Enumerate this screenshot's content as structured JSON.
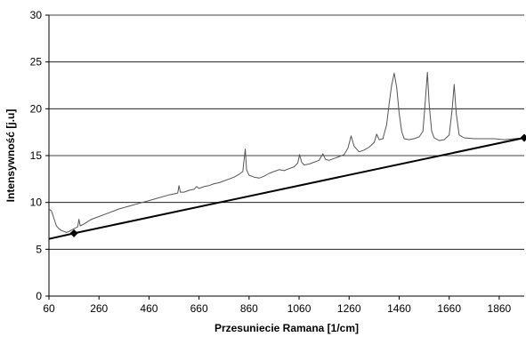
{
  "chart_data": {
    "type": "line",
    "xlabel": "Przesuniecie Ramana [1/cm]",
    "ylabel": "Intensywność [j.u]",
    "xlim": [
      60,
      1960
    ],
    "ylim": [
      0,
      30
    ],
    "x_ticks": [
      60,
      260,
      460,
      660,
      860,
      1060,
      1260,
      1460,
      1660,
      1860
    ],
    "y_ticks": [
      0,
      5,
      10,
      15,
      20,
      25,
      30
    ],
    "grid": "horizontal",
    "legend": "none",
    "colors": {
      "spectrum": "#555555",
      "baseline": "#000000",
      "grid": "#000000"
    },
    "series": [
      {
        "values": [
          [
            60,
            9.3
          ],
          [
            70,
            9.1
          ],
          [
            80,
            8.3
          ],
          [
            90,
            7.5
          ],
          [
            100,
            7.2
          ],
          [
            110,
            7.0
          ],
          [
            120,
            6.9
          ],
          [
            130,
            6.8
          ],
          [
            140,
            6.9
          ],
          [
            160,
            7.2
          ],
          [
            175,
            7.4
          ],
          [
            180,
            8.2
          ],
          [
            185,
            7.5
          ],
          [
            200,
            7.7
          ],
          [
            230,
            8.2
          ],
          [
            260,
            8.5
          ],
          [
            300,
            8.9
          ],
          [
            340,
            9.3
          ],
          [
            380,
            9.6
          ],
          [
            420,
            9.9
          ],
          [
            460,
            10.2
          ],
          [
            500,
            10.5
          ],
          [
            540,
            10.8
          ],
          [
            575,
            11.0
          ],
          [
            580,
            11.8
          ],
          [
            585,
            11.1
          ],
          [
            600,
            11.1
          ],
          [
            620,
            11.3
          ],
          [
            640,
            11.4
          ],
          [
            650,
            11.7
          ],
          [
            660,
            11.5
          ],
          [
            680,
            11.7
          ],
          [
            700,
            11.8
          ],
          [
            720,
            12.0
          ],
          [
            740,
            12.1
          ],
          [
            760,
            12.3
          ],
          [
            780,
            12.5
          ],
          [
            800,
            12.7
          ],
          [
            820,
            13.0
          ],
          [
            835,
            13.3
          ],
          [
            845,
            15.7
          ],
          [
            850,
            13.5
          ],
          [
            860,
            12.9
          ],
          [
            880,
            12.7
          ],
          [
            900,
            12.6
          ],
          [
            920,
            12.8
          ],
          [
            940,
            13.1
          ],
          [
            960,
            13.3
          ],
          [
            980,
            13.5
          ],
          [
            1000,
            13.4
          ],
          [
            1020,
            13.6
          ],
          [
            1040,
            13.8
          ],
          [
            1055,
            14.2
          ],
          [
            1062,
            15.1
          ],
          [
            1070,
            14.3
          ],
          [
            1080,
            14.0
          ],
          [
            1100,
            14.1
          ],
          [
            1120,
            14.3
          ],
          [
            1140,
            14.5
          ],
          [
            1155,
            15.2
          ],
          [
            1165,
            14.6
          ],
          [
            1180,
            14.5
          ],
          [
            1200,
            14.7
          ],
          [
            1220,
            14.9
          ],
          [
            1240,
            15.1
          ],
          [
            1255,
            15.8
          ],
          [
            1268,
            17.1
          ],
          [
            1280,
            16.0
          ],
          [
            1300,
            15.4
          ],
          [
            1320,
            15.6
          ],
          [
            1340,
            15.9
          ],
          [
            1360,
            16.4
          ],
          [
            1370,
            17.3
          ],
          [
            1380,
            16.7
          ],
          [
            1395,
            16.8
          ],
          [
            1410,
            18.3
          ],
          [
            1420,
            20.5
          ],
          [
            1430,
            22.5
          ],
          [
            1440,
            23.8
          ],
          [
            1450,
            22.3
          ],
          [
            1460,
            19.5
          ],
          [
            1470,
            17.6
          ],
          [
            1480,
            16.8
          ],
          [
            1500,
            16.7
          ],
          [
            1520,
            16.8
          ],
          [
            1540,
            17.0
          ],
          [
            1555,
            17.6
          ],
          [
            1565,
            21.0
          ],
          [
            1573,
            23.9
          ],
          [
            1580,
            20.5
          ],
          [
            1590,
            17.6
          ],
          [
            1600,
            16.9
          ],
          [
            1620,
            16.6
          ],
          [
            1640,
            16.7
          ],
          [
            1660,
            17.2
          ],
          [
            1672,
            20.0
          ],
          [
            1680,
            22.6
          ],
          [
            1688,
            19.5
          ],
          [
            1700,
            17.2
          ],
          [
            1720,
            16.9
          ],
          [
            1760,
            16.8
          ],
          [
            1800,
            16.8
          ],
          [
            1840,
            16.8
          ],
          [
            1880,
            16.7
          ],
          [
            1920,
            16.8
          ],
          [
            1960,
            16.9
          ]
        ]
      },
      {
        "values": [
          [
            60,
            6.1
          ],
          [
            160,
            6.7
          ],
          [
            1960,
            16.9
          ]
        ]
      }
    ],
    "markers": [
      [
        160,
        6.7
      ],
      [
        1960,
        16.9
      ]
    ]
  }
}
